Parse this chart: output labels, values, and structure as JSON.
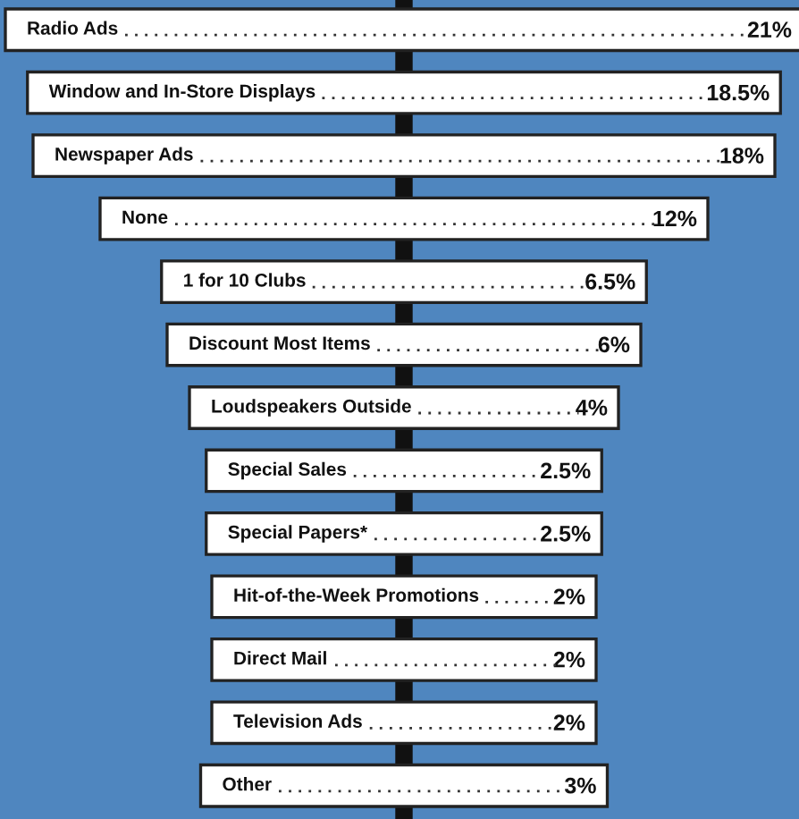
{
  "chart_data": {
    "type": "other",
    "categories": [
      "Radio Ads",
      "Window and In-Store Displays",
      "Newspaper Ads",
      "None",
      "1 for 10 Clubs",
      "Discount Most Items",
      "Loudspeakers Outside",
      "Special Sales",
      "Special Papers*",
      "Hit-of-the-Week Promotions",
      "Direct Mail",
      "Television Ads",
      "Other"
    ],
    "values": [
      21,
      18.5,
      18,
      12,
      6.5,
      6,
      4,
      2.5,
      2.5,
      2,
      2,
      2,
      3
    ],
    "value_labels": [
      "21%",
      "18.5%",
      "18%",
      "12%",
      "6.5%",
      "6%",
      "4%",
      "2.5%",
      "2.5%",
      "2%",
      "2%",
      "2%",
      "3%"
    ],
    "color": "#ffffff"
  }
}
